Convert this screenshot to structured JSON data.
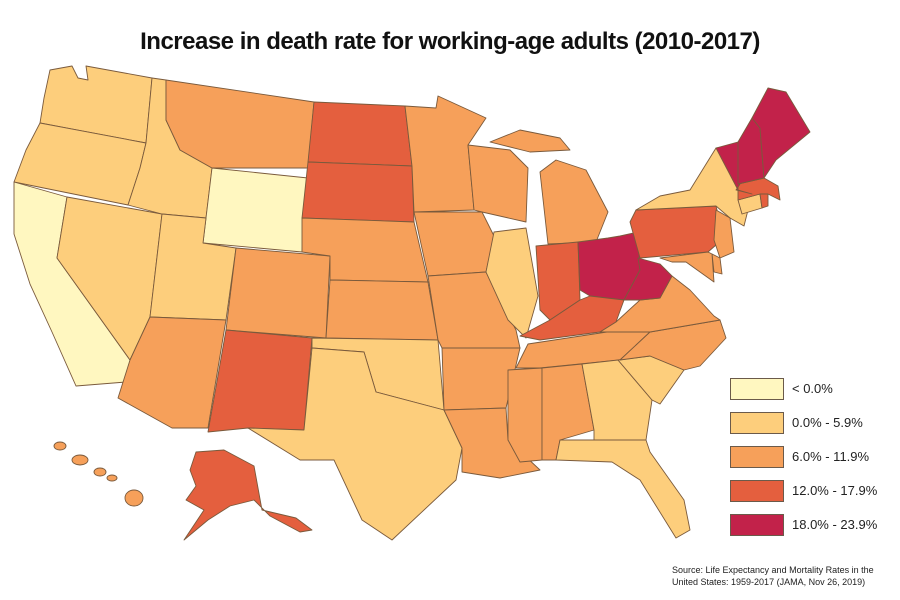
{
  "title": "Increase in death rate for working-age adults (2010-2017)",
  "colors": {
    "below_zero": "#fff7c0",
    "bin_0_6": "#fdce7c",
    "bin_6_12": "#f6a05a",
    "bin_12_18": "#e45f3e",
    "bin_18_24": "#c2224a"
  },
  "legend": {
    "items": [
      {
        "label": "< 0.0%",
        "color": "#fff7c0"
      },
      {
        "label": "0.0% - 5.9%",
        "color": "#fdce7c"
      },
      {
        "label": "6.0% - 11.9%",
        "color": "#f6a05a"
      },
      {
        "label": "12.0% - 17.9%",
        "color": "#e45f3e"
      },
      {
        "label": "18.0% - 23.9%",
        "color": "#c2224a"
      }
    ]
  },
  "states": {
    "WA": "0.0% - 5.9%",
    "OR": "0.0% - 5.9%",
    "CA": "< 0.0%",
    "NV": "0.0% - 5.9%",
    "ID": "0.0% - 5.9%",
    "MT": "6.0% - 11.9%",
    "WY": "< 0.0%",
    "UT": "0.0% - 5.9%",
    "AZ": "6.0% - 11.9%",
    "CO": "6.0% - 11.9%",
    "NM": "12.0% - 17.9%",
    "ND": "12.0% - 17.9%",
    "SD": "12.0% - 17.9%",
    "NE": "6.0% - 11.9%",
    "KS": "6.0% - 11.9%",
    "OK": "0.0% - 5.9%",
    "TX": "0.0% - 5.9%",
    "MN": "6.0% - 11.9%",
    "IA": "6.0% - 11.9%",
    "MO": "6.0% - 11.9%",
    "AR": "6.0% - 11.9%",
    "LA": "6.0% - 11.9%",
    "WI": "6.0% - 11.9%",
    "IL": "0.0% - 5.9%",
    "MI": "6.0% - 11.9%",
    "IN": "12.0% - 17.9%",
    "OH": "18.0% - 23.9%",
    "KY": "12.0% - 17.9%",
    "TN": "6.0% - 11.9%",
    "MS": "6.0% - 11.9%",
    "AL": "6.0% - 11.9%",
    "GA": "0.0% - 5.9%",
    "FL": "0.0% - 5.9%",
    "SC": "0.0% - 5.9%",
    "NC": "6.0% - 11.9%",
    "VA": "6.0% - 11.9%",
    "WV": "18.0% - 23.9%",
    "PA": "12.0% - 17.9%",
    "NY": "0.0% - 5.9%",
    "NJ": "6.0% - 11.9%",
    "DE": "6.0% - 11.9%",
    "MD": "6.0% - 11.9%",
    "CT": "0.0% - 5.9%",
    "RI": "12.0% - 17.9%",
    "MA": "12.0% - 17.9%",
    "VT": "18.0% - 23.9%",
    "NH": "18.0% - 23.9%",
    "ME": "18.0% - 23.9%",
    "AK": "12.0% - 17.9%",
    "HI": "6.0% - 11.9%"
  },
  "source": {
    "line1": "Source: Life Expectancy and Mortality Rates in the",
    "line2": "United States: 1959-2017 (JAMA, Nov 26, 2019)"
  }
}
